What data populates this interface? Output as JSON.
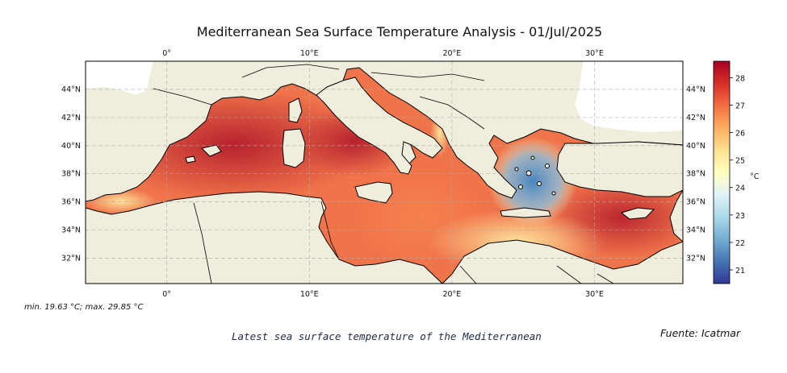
{
  "title": "Mediterranean Sea Surface Temperature Analysis - 01/Jul/2025",
  "map": {
    "lon_range": [
      -5.7,
      36.2
    ],
    "lat_range": [
      30.2,
      46.0
    ],
    "lon_ticks": [
      {
        "value": 0,
        "label": "0°"
      },
      {
        "value": 10,
        "label": "10°E"
      },
      {
        "value": 20,
        "label": "20°E"
      },
      {
        "value": 30,
        "label": "30°E"
      }
    ],
    "lat_ticks": [
      {
        "value": 32,
        "label": "32°N"
      },
      {
        "value": 34,
        "label": "34°N"
      },
      {
        "value": 36,
        "label": "36°N"
      },
      {
        "value": 38,
        "label": "38°N"
      },
      {
        "value": 40,
        "label": "40°N"
      },
      {
        "value": 42,
        "label": "42°N"
      },
      {
        "value": 44,
        "label": "44°N"
      }
    ],
    "land_color": "#efeedc",
    "grid": true
  },
  "colorbar": {
    "unit": "°C",
    "range": [
      20.5,
      28.6
    ],
    "ticks": [
      21,
      22,
      23,
      24,
      25,
      26,
      27,
      28
    ],
    "colors": [
      "#313695",
      "#4575b4",
      "#74add1",
      "#abd9e9",
      "#e0f3f8",
      "#ffffbf",
      "#fee090",
      "#fdae61",
      "#f46d43",
      "#d73027",
      "#a50026"
    ]
  },
  "minmax_text": "min. 19.63 °C; max. 29.85 °C",
  "caption": "Latest sea surface temperature of the Mediterranean",
  "source": "Fuente: Icatmar"
}
